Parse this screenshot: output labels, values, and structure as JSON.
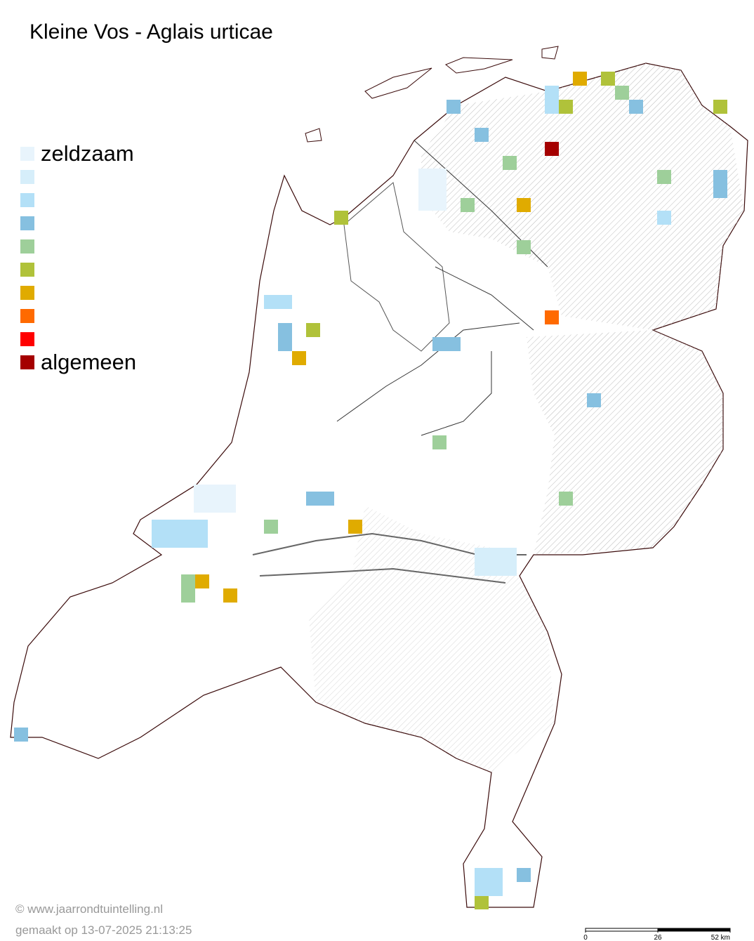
{
  "title": "Kleine Vos - Aglais urticae",
  "legend": {
    "colors": [
      "#e8f4fc",
      "#d6eefa",
      "#b3e0f7",
      "#86c0e0",
      "#9ecf9a",
      "#b0c23a",
      "#e0ab00",
      "#ff6a00",
      "#ff0000",
      "#a50000"
    ],
    "low_label": "zeldzaam",
    "high_label": "algemeen"
  },
  "footer": {
    "credit": "© www.jaarrondtuintelling.nl",
    "generated": "gemaakt op 13-07-2025 21:13:25"
  },
  "scale_bar": {
    "ticks": [
      0,
      26,
      {
        "value": 52,
        "label": "52 km"
      }
    ]
  }
}
